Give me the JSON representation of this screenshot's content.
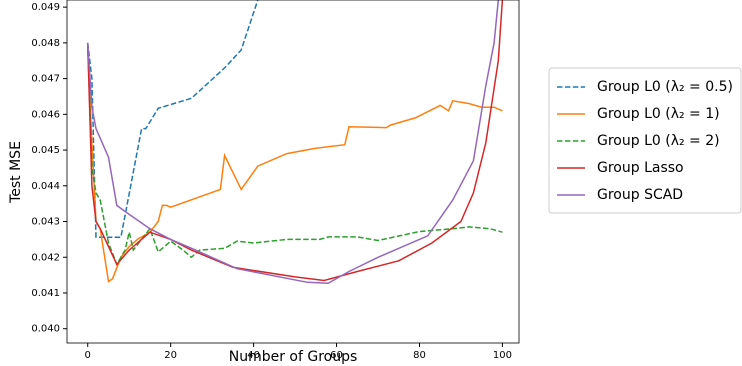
{
  "chart_data": {
    "type": "line",
    "x_label": "Number of Groups",
    "y_label": "Test MSE",
    "xlim": [
      -5,
      104
    ],
    "ylim": [
      0.0396,
      0.0492
    ],
    "xticks": [
      0,
      20,
      40,
      60,
      80,
      100
    ],
    "yticks": [
      {
        "value": 0.04,
        "label": "0.040"
      },
      0.041,
      0.042,
      0.043,
      0.044,
      0.045,
      0.046,
      0.047,
      0.048,
      0.049
    ],
    "legend": "outside right",
    "series": [
      {
        "name": "Group L0 (λ₂ = 0.5)",
        "color": "#1f77b4",
        "dash": true,
        "x": [
          0,
          1,
          2,
          8,
          13,
          14,
          17,
          25,
          33,
          37,
          41,
          43
        ],
        "values": [
          0.048,
          0.047,
          0.04256,
          0.04256,
          0.0456,
          0.0456,
          0.04617,
          0.04645,
          0.0473,
          0.0478,
          0.0492,
          0.05
        ]
      },
      {
        "name": "Group L0 (λ₂ = 1)",
        "color": "#ff7f0e",
        "dash": false,
        "x": [
          0,
          1,
          2,
          3,
          5,
          6,
          8,
          10,
          12,
          15,
          17,
          18,
          19,
          20,
          32,
          33,
          37,
          41,
          48,
          55,
          62,
          63,
          72,
          73,
          79,
          85,
          87,
          88,
          92,
          95,
          98,
          100
        ],
        "values": [
          0.0479,
          0.0452,
          0.043,
          0.0428,
          0.04132,
          0.0414,
          0.042,
          0.0423,
          0.0425,
          0.0427,
          0.043,
          0.04345,
          0.04345,
          0.0434,
          0.0439,
          0.04485,
          0.0439,
          0.04455,
          0.0449,
          0.04505,
          0.04515,
          0.04565,
          0.04563,
          0.0457,
          0.0459,
          0.04625,
          0.0461,
          0.04638,
          0.0463,
          0.0462,
          0.0462,
          0.0461
        ]
      },
      {
        "name": "Group L0 (λ₂ = 2)",
        "color": "#2ca02c",
        "dash": true,
        "x": [
          0,
          1,
          2,
          3,
          5,
          7,
          9,
          10,
          11,
          15,
          17,
          20,
          23,
          25,
          27,
          33,
          36,
          40,
          48,
          56,
          58,
          65,
          70,
          80,
          88,
          92,
          97,
          100
        ],
        "values": [
          0.048,
          0.0445,
          0.0438,
          0.0436,
          0.0424,
          0.0418,
          0.0422,
          0.0427,
          0.0422,
          0.0428,
          0.04215,
          0.04245,
          0.0422,
          0.042,
          0.0422,
          0.04225,
          0.04245,
          0.0424,
          0.0425,
          0.0425,
          0.04257,
          0.04257,
          0.04247,
          0.04272,
          0.0428,
          0.04285,
          0.0428,
          0.0427
        ]
      },
      {
        "name": "Group Lasso",
        "color": "#d62728",
        "dash": false,
        "x": [
          0,
          1,
          2,
          3,
          5,
          7,
          10,
          15,
          20,
          25,
          35,
          50,
          57,
          65,
          75,
          83,
          90,
          93,
          96,
          99,
          100
        ],
        "values": [
          0.048,
          0.044,
          0.043,
          0.0428,
          0.0423,
          0.0418,
          0.0422,
          0.0427,
          0.0425,
          0.0422,
          0.04172,
          0.04145,
          0.04135,
          0.0416,
          0.0419,
          0.0424,
          0.043,
          0.0438,
          0.0452,
          0.0475,
          0.0492
        ]
      },
      {
        "name": "Group SCAD",
        "color": "#9467bd",
        "dash": false,
        "x": [
          0,
          1,
          2,
          5,
          7,
          10,
          15,
          20,
          26,
          36,
          53,
          58,
          63,
          70,
          82,
          88,
          93,
          96,
          98,
          99
        ],
        "values": [
          0.048,
          0.0462,
          0.0456,
          0.0448,
          0.04345,
          0.0432,
          0.0428,
          0.0425,
          0.0422,
          0.04168,
          0.0413,
          0.04127,
          0.0416,
          0.042,
          0.0426,
          0.0436,
          0.0447,
          0.0468,
          0.048,
          0.0492
        ]
      }
    ]
  }
}
